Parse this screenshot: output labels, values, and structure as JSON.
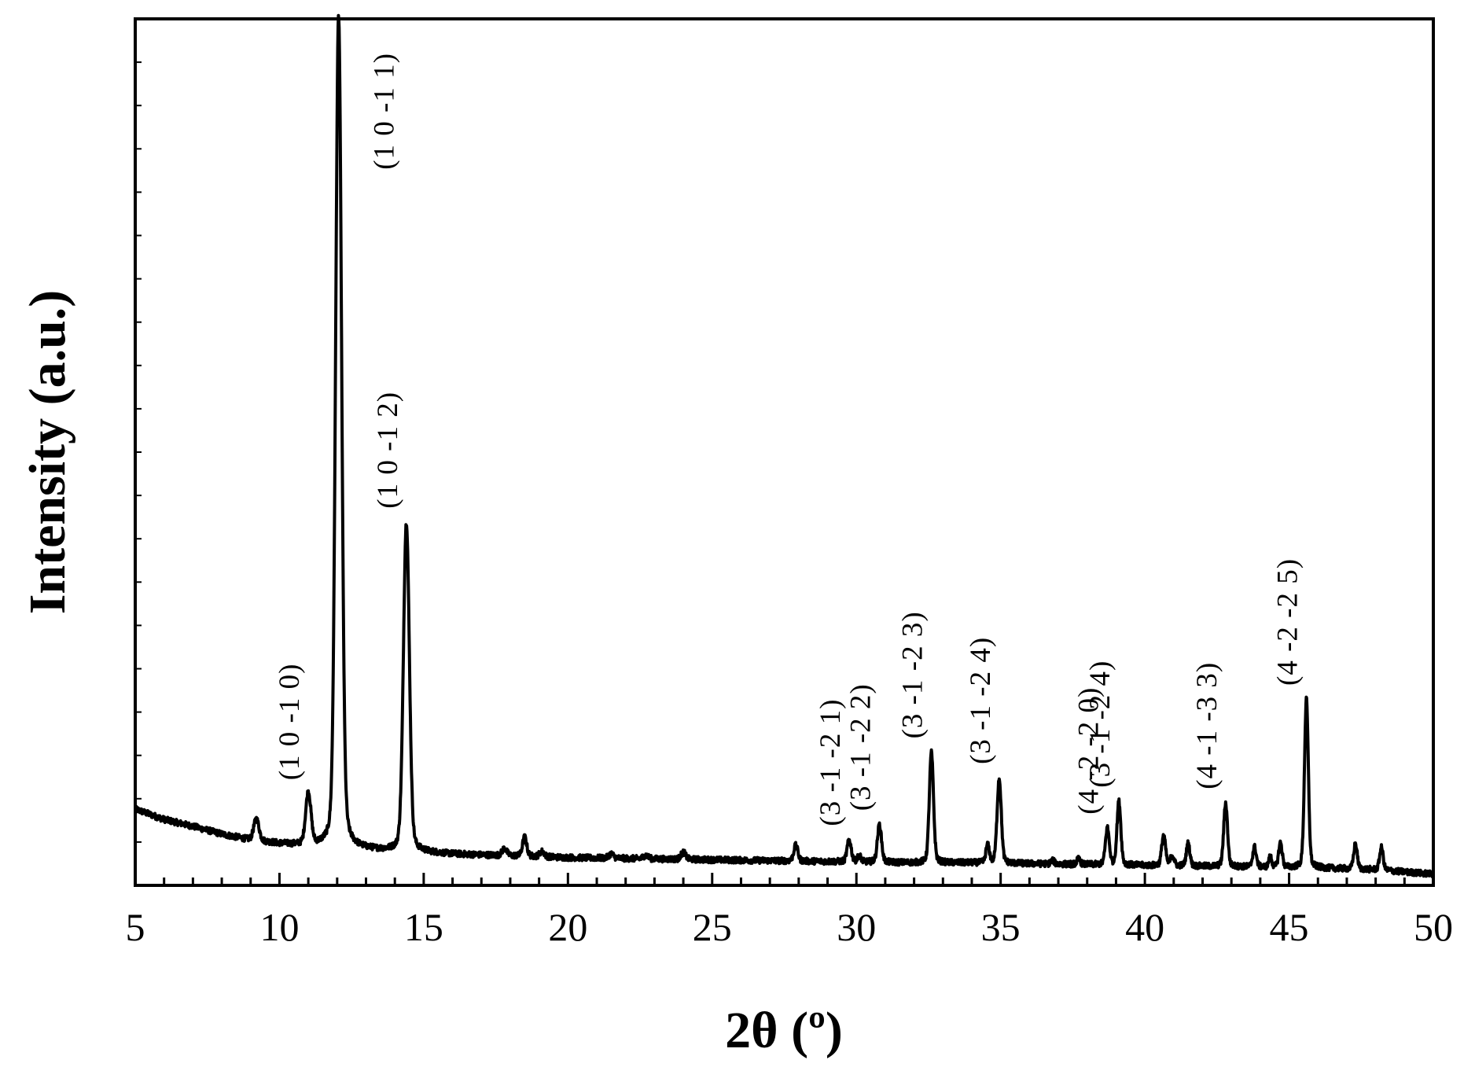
{
  "chart_data": {
    "type": "line",
    "title": "",
    "xlabel": "2θ (º)",
    "ylabel": "Intensity (a.u.)",
    "xlim": [
      5,
      50
    ],
    "ylim": [
      0,
      100
    ],
    "xticks": [
      5,
      10,
      15,
      20,
      25,
      30,
      35,
      40,
      45,
      50
    ],
    "y_tick_labels": false,
    "grid": false,
    "legend": "none",
    "line_color": "#000000",
    "background": {
      "points": [
        [
          5,
          8.8
        ],
        [
          6,
          7.6
        ],
        [
          7,
          6.8
        ],
        [
          8,
          5.9
        ],
        [
          9,
          5.2
        ],
        [
          10,
          4.8
        ],
        [
          11,
          4.5
        ],
        [
          12,
          4.3
        ],
        [
          13,
          4.1
        ],
        [
          14,
          3.9
        ],
        [
          15,
          3.8
        ],
        [
          16,
          3.6
        ],
        [
          18,
          3.4
        ],
        [
          20,
          3.2
        ],
        [
          22,
          3.1
        ],
        [
          24,
          3.0
        ],
        [
          26,
          2.9
        ],
        [
          28,
          2.8
        ],
        [
          30,
          2.7
        ],
        [
          32,
          2.6
        ],
        [
          34,
          2.6
        ],
        [
          36,
          2.5
        ],
        [
          38,
          2.4
        ],
        [
          40,
          2.3
        ],
        [
          42,
          2.2
        ],
        [
          44,
          2.1
        ],
        [
          46,
          2.0
        ],
        [
          48,
          1.8
        ],
        [
          50,
          1.3
        ]
      ]
    },
    "peaks": [
      {
        "x": 9.2,
        "height": 2.5,
        "width": 0.09
      },
      {
        "x": 11.0,
        "height": 6.0,
        "width": 0.09,
        "label": "(1 0 -1 0)"
      },
      {
        "x": 12.05,
        "height": 96.0,
        "width": 0.1,
        "label": "(1 0 -1 1)"
      },
      {
        "x": 14.4,
        "height": 38.0,
        "width": 0.1,
        "label": "(1 0 -1 2)"
      },
      {
        "x": 17.8,
        "height": 0.8,
        "width": 0.08
      },
      {
        "x": 18.5,
        "height": 2.2,
        "width": 0.07
      },
      {
        "x": 19.1,
        "height": 0.6,
        "width": 0.08
      },
      {
        "x": 21.5,
        "height": 0.5,
        "width": 0.08
      },
      {
        "x": 22.7,
        "height": 0.4,
        "width": 0.08
      },
      {
        "x": 24.0,
        "height": 0.8,
        "width": 0.08
      },
      {
        "x": 27.9,
        "height": 1.8,
        "width": 0.07
      },
      {
        "x": 29.75,
        "height": 2.5,
        "width": 0.07,
        "label": "(3 -1 -2 1)"
      },
      {
        "x": 30.1,
        "height": 0.7,
        "width": 0.06
      },
      {
        "x": 30.8,
        "height": 4.3,
        "width": 0.07,
        "label": "(3 -1 -2 2)"
      },
      {
        "x": 32.6,
        "height": 12.7,
        "width": 0.07,
        "label": "(3 -1 -2 3)"
      },
      {
        "x": 34.55,
        "height": 2.0,
        "width": 0.06
      },
      {
        "x": 34.95,
        "height": 9.8,
        "width": 0.07,
        "label": "(3 -1 -2 4)"
      },
      {
        "x": 36.8,
        "height": 0.4,
        "width": 0.06
      },
      {
        "x": 37.7,
        "height": 0.6,
        "width": 0.06
      },
      {
        "x": 38.7,
        "height": 4.2,
        "width": 0.065,
        "label": "(4 -2 -2 0)"
      },
      {
        "x": 39.1,
        "height": 7.3,
        "width": 0.065,
        "label": "(3 -1 -2 4)"
      },
      {
        "x": 40.65,
        "height": 3.5,
        "width": 0.065
      },
      {
        "x": 40.95,
        "height": 1.2,
        "width": 0.06
      },
      {
        "x": 41.5,
        "height": 2.6,
        "width": 0.06
      },
      {
        "x": 42.8,
        "height": 7.3,
        "width": 0.065,
        "label": "(4 -1 -3 3)"
      },
      {
        "x": 43.8,
        "height": 2.3,
        "width": 0.06
      },
      {
        "x": 44.35,
        "height": 1.2,
        "width": 0.05
      },
      {
        "x": 44.7,
        "height": 2.8,
        "width": 0.06
      },
      {
        "x": 45.6,
        "height": 19.4,
        "width": 0.065,
        "label": "(4 -2 -2 5)"
      },
      {
        "x": 47.3,
        "height": 2.9,
        "width": 0.06
      },
      {
        "x": 48.2,
        "height": 2.6,
        "width": 0.06
      }
    ]
  }
}
